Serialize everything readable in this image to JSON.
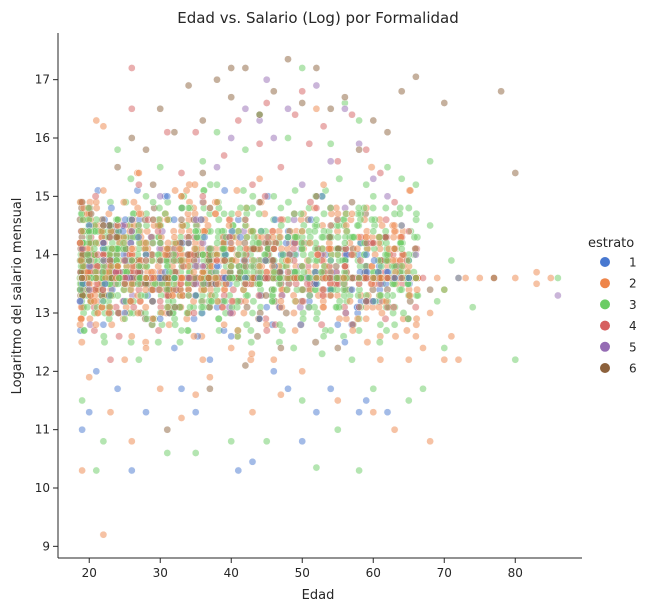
{
  "chart_data": {
    "type": "scatter",
    "title": "Edad vs. Salario (Log) por Formalidad",
    "xlabel": "Edad",
    "ylabel": "Logaritmo del salario mensual",
    "xlim": [
      15.6,
      89.4
    ],
    "ylim": [
      8.8,
      17.8
    ],
    "xticks": [
      20,
      30,
      40,
      50,
      60,
      70,
      80
    ],
    "yticks": [
      9,
      10,
      11,
      12,
      13,
      14,
      15,
      16,
      17
    ],
    "grid": false,
    "legend": {
      "title": "estrato",
      "placement": "right",
      "entries": [
        {
          "label": "1",
          "color": "#4878d0"
        },
        {
          "label": "2",
          "color": "#ee854a"
        },
        {
          "label": "3",
          "color": "#6acc64"
        },
        {
          "label": "4",
          "color": "#d65f5f"
        },
        {
          "label": "5",
          "color": "#956cb4"
        },
        {
          "label": "6",
          "color": "#8c613c"
        }
      ]
    },
    "point_alpha": 0.5,
    "series": [
      {
        "name": "1",
        "color": "#4878d0",
        "points": [
          [
            19,
            11.0
          ],
          [
            20,
            11.3
          ],
          [
            21,
            12.0
          ],
          [
            22,
            12.8
          ],
          [
            24,
            11.7
          ],
          [
            26,
            10.3
          ],
          [
            28,
            11.3
          ],
          [
            33,
            11.7
          ],
          [
            40,
            12.6
          ],
          [
            41,
            10.3
          ],
          [
            43,
            10.45
          ],
          [
            46,
            12.0
          ],
          [
            48,
            11.7
          ],
          [
            50,
            10.8
          ],
          [
            52,
            11.3
          ],
          [
            54,
            11.7
          ],
          [
            56,
            12.5
          ],
          [
            58,
            11.3
          ],
          [
            59,
            11.5
          ],
          [
            62,
            11.3
          ],
          [
            25,
            13.0
          ],
          [
            30,
            12.9
          ],
          [
            35,
            13.3
          ],
          [
            45,
            13.1
          ],
          [
            55,
            12.8
          ],
          [
            60,
            13.2
          ],
          [
            65,
            13.6
          ],
          [
            22,
            14.2
          ],
          [
            28,
            14.0
          ],
          [
            38,
            13.8
          ],
          [
            48,
            14.3
          ],
          [
            52,
            13.5
          ],
          [
            32,
            12.4
          ],
          [
            42,
            13.6
          ],
          [
            35,
            11.3
          ],
          [
            37,
            12.2
          ],
          [
            44,
            12.9
          ],
          [
            57,
            13.4
          ],
          [
            63,
            13.6
          ],
          [
            20,
            14.5
          ],
          [
            31,
            15.0
          ],
          [
            26,
            14.6
          ]
        ]
      },
      {
        "name": "2",
        "color": "#ee854a",
        "points": [
          [
            19,
            10.3
          ],
          [
            21,
            16.3
          ],
          [
            22,
            9.2
          ],
          [
            22,
            16.2
          ],
          [
            20,
            11.9
          ],
          [
            23,
            11.3
          ],
          [
            25,
            12.2
          ],
          [
            26,
            10.8
          ],
          [
            28,
            12.4
          ],
          [
            30,
            11.7
          ],
          [
            33,
            11.2
          ],
          [
            35,
            11.6
          ],
          [
            37,
            11.9
          ],
          [
            40,
            12.4
          ],
          [
            43,
            11.3
          ],
          [
            47,
            11.6
          ],
          [
            50,
            12.0
          ],
          [
            55,
            11.5
          ],
          [
            60,
            11.3
          ],
          [
            63,
            11.0
          ],
          [
            65,
            12.2
          ],
          [
            68,
            10.8
          ],
          [
            70,
            12.2
          ],
          [
            72,
            12.2
          ],
          [
            75,
            13.6
          ],
          [
            77,
            13.6
          ],
          [
            80,
            13.6
          ],
          [
            83,
            13.7
          ],
          [
            83,
            13.5
          ],
          [
            85,
            13.6
          ],
          [
            20,
            13.5
          ],
          [
            24,
            13.8
          ],
          [
            26,
            14.1
          ],
          [
            28,
            13.6
          ],
          [
            30,
            13.9
          ],
          [
            32,
            14.3
          ],
          [
            34,
            13.4
          ],
          [
            36,
            13.7
          ],
          [
            38,
            14.0
          ],
          [
            40,
            14.2
          ],
          [
            42,
            13.5
          ],
          [
            44,
            13.8
          ],
          [
            46,
            14.1
          ],
          [
            48,
            13.9
          ],
          [
            50,
            14.4
          ],
          [
            52,
            13.6
          ],
          [
            54,
            13.3
          ],
          [
            56,
            13.8
          ],
          [
            58,
            13.5
          ],
          [
            60,
            13.6
          ],
          [
            62,
            13.6
          ],
          [
            64,
            13.6
          ],
          [
            66,
            12.6
          ],
          [
            68,
            13.0
          ],
          [
            70,
            13.4
          ],
          [
            22,
            15.1
          ],
          [
            27,
            15.4
          ],
          [
            33,
            15.0
          ],
          [
            38,
            14.9
          ],
          [
            44,
            15.3
          ],
          [
            53,
            15.2
          ],
          [
            57,
            14.7
          ],
          [
            29,
            12.9
          ],
          [
            39,
            12.8
          ],
          [
            49,
            12.7
          ],
          [
            59,
            12.9
          ],
          [
            67,
            12.4
          ],
          [
            73,
            13.6
          ],
          [
            52,
            16.5
          ],
          [
            24,
            14.5
          ],
          [
            31,
            14.6
          ],
          [
            41,
            14.7
          ],
          [
            47,
            13.2
          ],
          [
            63,
            14.1
          ],
          [
            69,
            13.6
          ],
          [
            46,
            12.2
          ],
          [
            36,
            12.2
          ],
          [
            26,
            12.6
          ],
          [
            61,
            12.2
          ],
          [
            71,
            12.6
          ]
        ]
      },
      {
        "name": "3",
        "color": "#6acc64",
        "points": [
          [
            19,
            11.5
          ],
          [
            21,
            10.3
          ],
          [
            22,
            10.8
          ],
          [
            27,
            12.2
          ],
          [
            31,
            10.6
          ],
          [
            35,
            10.6
          ],
          [
            40,
            10.8
          ],
          [
            45,
            10.8
          ],
          [
            50,
            11.5
          ],
          [
            52,
            10.35
          ],
          [
            55,
            11.0
          ],
          [
            58,
            10.3
          ],
          [
            60,
            11.7
          ],
          [
            65,
            11.5
          ],
          [
            67,
            11.7
          ],
          [
            70,
            12.4
          ],
          [
            74,
            13.1
          ],
          [
            80,
            12.2
          ],
          [
            86,
            13.6
          ],
          [
            20,
            14.4
          ],
          [
            22,
            13.2
          ],
          [
            24,
            14.6
          ],
          [
            26,
            13.9
          ],
          [
            28,
            15.0
          ],
          [
            30,
            14.2
          ],
          [
            32,
            13.6
          ],
          [
            34,
            14.8
          ],
          [
            36,
            14.0
          ],
          [
            38,
            15.2
          ],
          [
            40,
            13.8
          ],
          [
            42,
            14.5
          ],
          [
            44,
            13.5
          ],
          [
            46,
            15.0
          ],
          [
            48,
            14.3
          ],
          [
            50,
            13.8
          ],
          [
            52,
            14.6
          ],
          [
            54,
            13.9
          ],
          [
            56,
            14.2
          ],
          [
            58,
            13.6
          ],
          [
            60,
            14.4
          ],
          [
            62,
            13.3
          ],
          [
            64,
            14.1
          ],
          [
            66,
            13.6
          ],
          [
            68,
            14.5
          ],
          [
            70,
            13.4
          ],
          [
            72,
            13.6
          ],
          [
            24,
            15.8
          ],
          [
            30,
            15.5
          ],
          [
            36,
            15.6
          ],
          [
            42,
            15.8
          ],
          [
            48,
            16.0
          ],
          [
            54,
            15.9
          ],
          [
            58,
            16.3
          ],
          [
            62,
            15.5
          ],
          [
            66,
            15.2
          ],
          [
            68,
            15.6
          ],
          [
            50,
            17.2
          ],
          [
            25,
            12.9
          ],
          [
            33,
            12.7
          ],
          [
            43,
            13.0
          ],
          [
            53,
            12.6
          ],
          [
            63,
            12.8
          ],
          [
            38,
            16.1
          ],
          [
            44,
            16.4
          ],
          [
            56,
            16.6
          ],
          [
            60,
            15.0
          ],
          [
            64,
            15.3
          ],
          [
            29,
            14.9
          ],
          [
            39,
            14.7
          ],
          [
            49,
            15.1
          ],
          [
            59,
            15.2
          ],
          [
            34,
            13.3
          ],
          [
            46,
            13.4
          ],
          [
            52,
            12.9
          ],
          [
            57,
            12.2
          ],
          [
            61,
            12.8
          ],
          [
            27,
            13.8
          ],
          [
            35,
            14.4
          ],
          [
            41,
            14.0
          ],
          [
            47,
            14.8
          ],
          [
            55,
            14.0
          ],
          [
            65,
            13.9
          ],
          [
            69,
            13.2
          ],
          [
            71,
            13.9
          ]
        ]
      },
      {
        "name": "4",
        "color": "#d65f5f",
        "points": [
          [
            26,
            17.2
          ],
          [
            22,
            14.0
          ],
          [
            23,
            12.2
          ],
          [
            25,
            13.5
          ],
          [
            27,
            15.2
          ],
          [
            29,
            14.6
          ],
          [
            31,
            16.1
          ],
          [
            33,
            15.4
          ],
          [
            35,
            16.1
          ],
          [
            37,
            14.8
          ],
          [
            39,
            15.7
          ],
          [
            41,
            16.3
          ],
          [
            43,
            15.2
          ],
          [
            45,
            16.6
          ],
          [
            47,
            15.5
          ],
          [
            49,
            16.4
          ],
          [
            51,
            15.9
          ],
          [
            53,
            16.2
          ],
          [
            55,
            15.6
          ],
          [
            57,
            16.4
          ],
          [
            59,
            15.8
          ],
          [
            61,
            15.4
          ],
          [
            63,
            14.9
          ],
          [
            65,
            14.4
          ],
          [
            67,
            13.6
          ],
          [
            50,
            16.8
          ],
          [
            30,
            13.2
          ],
          [
            34,
            14.3
          ],
          [
            38,
            13.9
          ],
          [
            42,
            14.6
          ],
          [
            46,
            14.1
          ],
          [
            52,
            14.8
          ],
          [
            56,
            13.8
          ],
          [
            60,
            14.2
          ],
          [
            28,
            13.9
          ],
          [
            36,
            15.0
          ],
          [
            44,
            15.9
          ],
          [
            48,
            13.7
          ],
          [
            54,
            14.5
          ],
          [
            58,
            13.1
          ],
          [
            62,
            13.6
          ],
          [
            26,
            16.5
          ]
        ]
      },
      {
        "name": "5",
        "color": "#956cb4",
        "points": [
          [
            20,
            13.4
          ],
          [
            22,
            13.9
          ],
          [
            26,
            14.4
          ],
          [
            30,
            15.0
          ],
          [
            34,
            14.2
          ],
          [
            38,
            15.5
          ],
          [
            40,
            16.0
          ],
          [
            42,
            16.5
          ],
          [
            44,
            16.3
          ],
          [
            46,
            16.0
          ],
          [
            48,
            16.5
          ],
          [
            52,
            16.9
          ],
          [
            56,
            16.5
          ],
          [
            58,
            15.9
          ],
          [
            60,
            15.3
          ],
          [
            62,
            15.0
          ],
          [
            64,
            14.5
          ],
          [
            66,
            14.0
          ],
          [
            72,
            13.6
          ],
          [
            86,
            13.3
          ],
          [
            45,
            17.0
          ],
          [
            36,
            13.8
          ],
          [
            50,
            15.2
          ],
          [
            54,
            15.6
          ]
        ]
      },
      {
        "name": "6",
        "color": "#8c613c",
        "points": [
          [
            19,
            13.6
          ],
          [
            22,
            14.5
          ],
          [
            24,
            15.5
          ],
          [
            26,
            16.0
          ],
          [
            28,
            15.8
          ],
          [
            30,
            16.5
          ],
          [
            32,
            16.1
          ],
          [
            34,
            16.9
          ],
          [
            36,
            16.3
          ],
          [
            38,
            17.0
          ],
          [
            40,
            16.7
          ],
          [
            42,
            17.2
          ],
          [
            44,
            16.4
          ],
          [
            46,
            16.8
          ],
          [
            48,
            17.35
          ],
          [
            50,
            16.6
          ],
          [
            52,
            17.2
          ],
          [
            54,
            16.5
          ],
          [
            56,
            16.7
          ],
          [
            58,
            15.8
          ],
          [
            60,
            16.3
          ],
          [
            62,
            16.1
          ],
          [
            64,
            16.8
          ],
          [
            66,
            17.05
          ],
          [
            70,
            16.6
          ],
          [
            78,
            16.8
          ],
          [
            80,
            15.4
          ],
          [
            31,
            11.0
          ],
          [
            37,
            11.7
          ],
          [
            42,
            12.1
          ],
          [
            47,
            12.4
          ],
          [
            55,
            12.4
          ],
          [
            59,
            13.2
          ],
          [
            68,
            13.4
          ],
          [
            77,
            13.6
          ],
          [
            44,
            14.9
          ],
          [
            36,
            15.4
          ],
          [
            52,
            15.0
          ],
          [
            29,
            15.2
          ],
          [
            33,
            14.6
          ],
          [
            40,
            17.2
          ],
          [
            57,
            14.9
          ]
        ]
      }
    ],
    "x_range_cloud": [
      19,
      70
    ],
    "y_range_cloud": [
      12.2,
      15.6
    ]
  }
}
